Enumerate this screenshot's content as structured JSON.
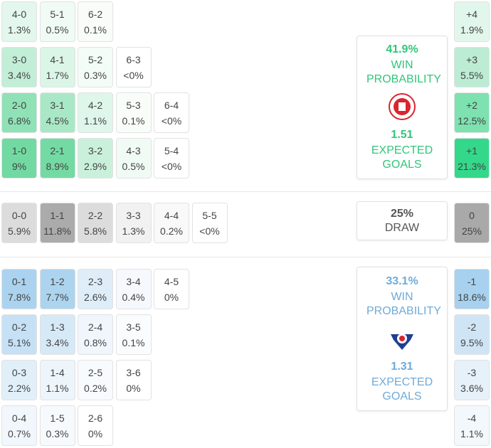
{
  "home": {
    "rows": [
      [
        {
          "score": "4-0",
          "pct": "1.3%",
          "color": "#e3f7ec"
        },
        {
          "score": "5-1",
          "pct": "0.5%",
          "color": "#f1fbf5"
        },
        {
          "score": "6-2",
          "pct": "0.1%",
          "color": "#f8fdfa"
        }
      ],
      [
        {
          "score": "3-0",
          "pct": "3.4%",
          "color": "#c2eed7"
        },
        {
          "score": "4-1",
          "pct": "1.7%",
          "color": "#dbf5e7"
        },
        {
          "score": "5-2",
          "pct": "0.3%",
          "color": "#f4fcf7"
        },
        {
          "score": "6-3",
          "pct": "<0%",
          "color": "#ffffff"
        }
      ],
      [
        {
          "score": "2-0",
          "pct": "6.8%",
          "color": "#8fe1b6"
        },
        {
          "score": "3-1",
          "pct": "4.5%",
          "color": "#a9e8c6"
        },
        {
          "score": "4-2",
          "pct": "1.1%",
          "color": "#dff6ea"
        },
        {
          "score": "5-3",
          "pct": "0.1%",
          "color": "#f8fdfa"
        },
        {
          "score": "6-4",
          "pct": "<0%",
          "color": "#ffffff"
        }
      ],
      [
        {
          "score": "1-0",
          "pct": "9%",
          "color": "#72d9a3"
        },
        {
          "score": "2-1",
          "pct": "8.9%",
          "color": "#74daa4"
        },
        {
          "score": "3-2",
          "pct": "2.9%",
          "color": "#caf0dc"
        },
        {
          "score": "4-3",
          "pct": "0.5%",
          "color": "#f1fbf5"
        },
        {
          "score": "5-4",
          "pct": "<0%",
          "color": "#ffffff"
        }
      ]
    ],
    "panel": {
      "win": "41.9%",
      "win_label": "WIN PROBABILITY",
      "xg": "1.51",
      "xg_label": "EXPECTED GOALS",
      "color": "#2fc779"
    }
  },
  "draw": {
    "cells": [
      {
        "score": "0-0",
        "pct": "5.9%",
        "color": "#dcdcdc"
      },
      {
        "score": "1-1",
        "pct": "11.8%",
        "color": "#ababab"
      },
      {
        "score": "2-2",
        "pct": "5.8%",
        "color": "#dcdcdc"
      },
      {
        "score": "3-3",
        "pct": "1.3%",
        "color": "#f1f1f1"
      },
      {
        "score": "4-4",
        "pct": "0.2%",
        "color": "#f9f9f9"
      },
      {
        "score": "5-5",
        "pct": "<0%",
        "color": "#ffffff"
      }
    ],
    "panel": {
      "pct": "25%",
      "label": "DRAW",
      "color": "#555555"
    }
  },
  "away": {
    "rows": [
      [
        {
          "score": "0-1",
          "pct": "7.8%",
          "color": "#abd3ef"
        },
        {
          "score": "1-2",
          "pct": "7.7%",
          "color": "#acd4ef"
        },
        {
          "score": "2-3",
          "pct": "2.6%",
          "color": "#deedf8"
        },
        {
          "score": "3-4",
          "pct": "0.4%",
          "color": "#f5f9fd"
        },
        {
          "score": "4-5",
          "pct": "0%",
          "color": "#ffffff"
        }
      ],
      [
        {
          "score": "0-2",
          "pct": "5.1%",
          "color": "#c6e1f5"
        },
        {
          "score": "1-3",
          "pct": "3.4%",
          "color": "#d6e9f7"
        },
        {
          "score": "2-4",
          "pct": "0.8%",
          "color": "#f0f6fc"
        },
        {
          "score": "3-5",
          "pct": "0.1%",
          "color": "#fafcfe"
        }
      ],
      [
        {
          "score": "0-3",
          "pct": "2.2%",
          "color": "#e1eff9"
        },
        {
          "score": "1-4",
          "pct": "1.1%",
          "color": "#edf5fb"
        },
        {
          "score": "2-5",
          "pct": "0.2%",
          "color": "#f8fbfd"
        },
        {
          "score": "3-6",
          "pct": "0%",
          "color": "#ffffff"
        }
      ],
      [
        {
          "score": "0-4",
          "pct": "0.7%",
          "color": "#f1f7fc"
        },
        {
          "score": "1-5",
          "pct": "0.3%",
          "color": "#f6fafd"
        },
        {
          "score": "2-6",
          "pct": "0%",
          "color": "#ffffff"
        }
      ]
    ],
    "panel": {
      "win": "33.1%",
      "win_label": "WIN PROBABILITY",
      "xg": "1.31",
      "xg_label": "EXPECTED GOALS",
      "color": "#6fabd9"
    }
  },
  "margins": [
    {
      "label": "+4",
      "pct": "1.9%",
      "color": "#e2f7ec"
    },
    {
      "label": "+3",
      "pct": "5.5%",
      "color": "#bdecd4"
    },
    {
      "label": "+2",
      "pct": "12.5%",
      "color": "#7ee1b0"
    },
    {
      "label": "+1",
      "pct": "21.3%",
      "color": "#34d88a"
    },
    {
      "label": "0",
      "pct": "25%",
      "color": "#a9a9a9"
    },
    {
      "label": "-1",
      "pct": "18.6%",
      "color": "#a7d1ef"
    },
    {
      "label": "-2",
      "pct": "9.5%",
      "color": "#cfe5f6"
    },
    {
      "label": "-3",
      "pct": "3.6%",
      "color": "#e6f1fa"
    },
    {
      "label": "-4",
      "pct": "1.1%",
      "color": "#f3f8fc"
    }
  ]
}
